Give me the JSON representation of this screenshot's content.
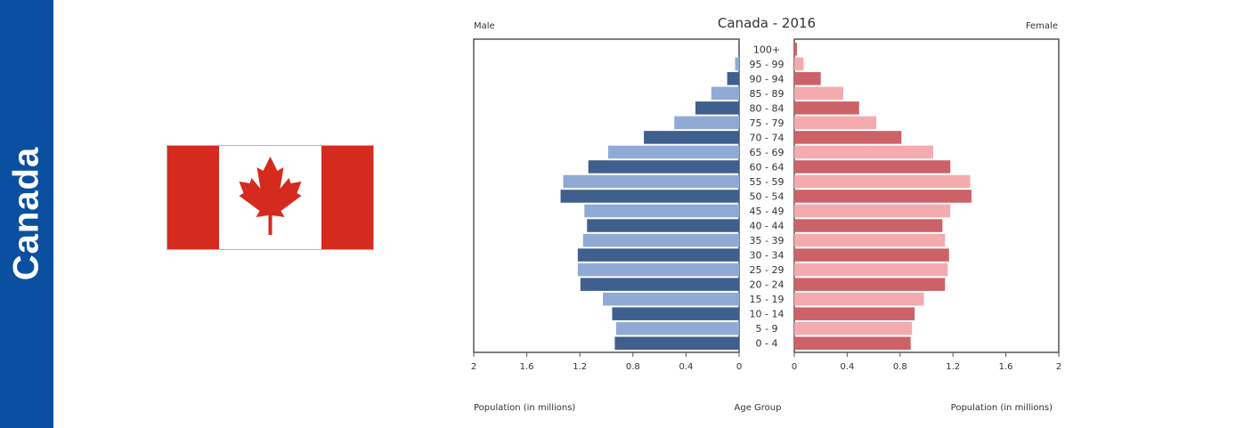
{
  "banner": {
    "label": "Canada"
  },
  "flag": {
    "name": "Flag of Canada",
    "colors": {
      "red": "#d52b1e",
      "white": "#ffffff"
    }
  },
  "chart_data": {
    "type": "bar",
    "subtype": "population-pyramid",
    "title": "Canada - 2016",
    "left_label": "Male",
    "right_label": "Female",
    "xlabel_left": "Population (in millions)",
    "xlabel_center": "Age Group",
    "xlabel_right": "Population (in millions)",
    "xlim": [
      0,
      2
    ],
    "xticks": [
      "2",
      "1.6",
      "1.2",
      "0.8",
      "0.4",
      "0"
    ],
    "xticks_right": [
      "0",
      "0.4",
      "0.8",
      "1.2",
      "1.6",
      "2"
    ],
    "categories": [
      "0 - 4",
      "5 - 9",
      "10 - 14",
      "15 - 19",
      "20 - 24",
      "25 - 29",
      "30 - 34",
      "35 - 39",
      "40 - 44",
      "45 - 49",
      "50 - 54",
      "55 - 59",
      "60 - 64",
      "65 - 69",
      "70 - 74",
      "75 - 79",
      "80 - 84",
      "85 - 89",
      "90 - 94",
      "95 - 99",
      "100+"
    ],
    "series": [
      {
        "name": "Male",
        "values": [
          0.94,
          0.93,
          0.96,
          1.03,
          1.2,
          1.22,
          1.22,
          1.18,
          1.15,
          1.17,
          1.35,
          1.33,
          1.14,
          0.99,
          0.72,
          0.49,
          0.33,
          0.21,
          0.09,
          0.03,
          0.005
        ],
        "colors": [
          "#3f5f8e",
          "#8fabd5"
        ]
      },
      {
        "name": "Female",
        "values": [
          0.88,
          0.89,
          0.91,
          0.98,
          1.14,
          1.16,
          1.17,
          1.14,
          1.12,
          1.18,
          1.34,
          1.33,
          1.18,
          1.05,
          0.81,
          0.62,
          0.49,
          0.37,
          0.2,
          0.07,
          0.02
        ],
        "colors": [
          "#cc6168",
          "#f3abae"
        ]
      }
    ],
    "grid": false,
    "legend": "none"
  }
}
